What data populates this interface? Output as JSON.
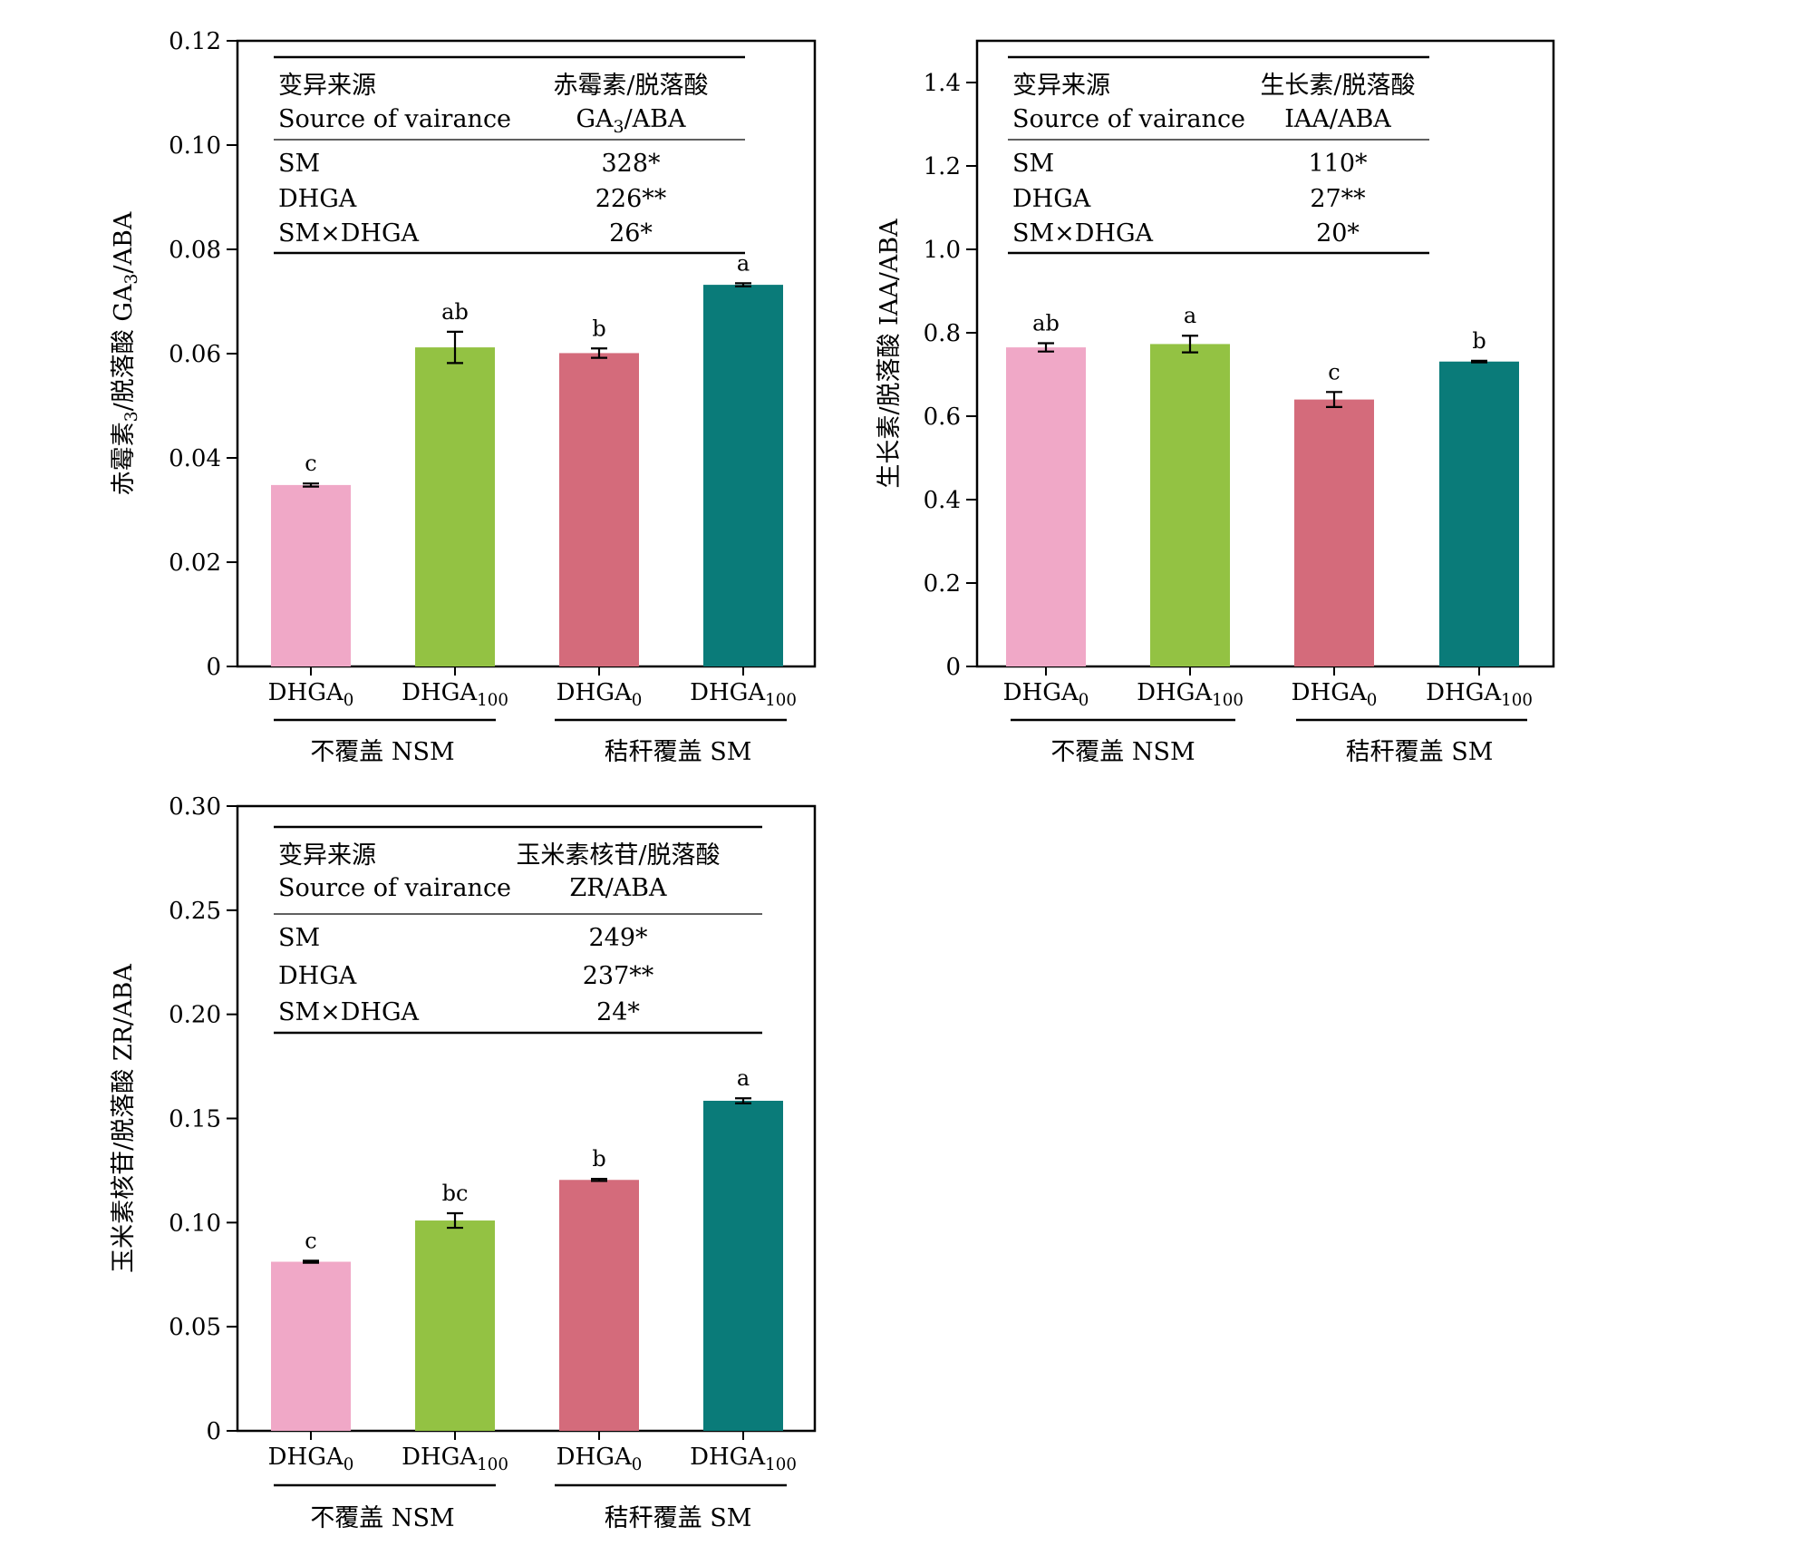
{
  "colors": {
    "DHGA0_NSM": "#f0a8c7",
    "DHGA100_NSM": "#93c243",
    "DHGA0_SM": "#d46b7b",
    "DHGA100_SM": "#0a7b79"
  },
  "chart_data": [
    {
      "type": "bar",
      "ylabel_main": "赤霉素",
      "ylabel_sub": "3",
      "ylabel_rest": "/脱落酸 GA",
      "ylabel_sub2": "3",
      "ylabel_end": "/ABA",
      "ylim": [
        0,
        0.12
      ],
      "yticks": [
        "0",
        "0.02",
        "0.04",
        "0.06",
        "0.08",
        "0.10",
        "0.12"
      ],
      "categories": [
        {
          "base": "DHGA",
          "sub": "0"
        },
        {
          "base": "DHGA",
          "sub": "100"
        },
        {
          "base": "DHGA",
          "sub": "0"
        },
        {
          "base": "DHGA",
          "sub": "100"
        }
      ],
      "groups": [
        "不覆盖 NSM",
        "秸秆覆盖 SM"
      ],
      "values": [
        0.0348,
        0.0612,
        0.0601,
        0.0732
      ],
      "errors": [
        0.0003,
        0.003,
        0.0009,
        0.0003
      ],
      "letters": [
        "c",
        "ab",
        "b",
        "a"
      ],
      "table": {
        "header_cn": "变异来源",
        "header_en": "Source of vairance",
        "col_cn": "赤霉素/脱落酸",
        "col_en_main": "GA",
        "col_en_sub": "3",
        "col_en_end": "/ABA",
        "rows": [
          {
            "label": "SM",
            "value": "328*"
          },
          {
            "label": "DHGA",
            "value": "226**"
          },
          {
            "label": "SM×DHGA",
            "value": "26*"
          }
        ]
      }
    },
    {
      "type": "bar",
      "ylabel_main": "生长素/脱落酸 IAA/ABA",
      "ylim": [
        0,
        1.5
      ],
      "yticks": [
        "0",
        "0.2",
        "0.4",
        "0.6",
        "0.8",
        "1.0",
        "1.2",
        "1.4"
      ],
      "categories": [
        {
          "base": "DHGA",
          "sub": "0"
        },
        {
          "base": "DHGA",
          "sub": "100"
        },
        {
          "base": "DHGA",
          "sub": "0"
        },
        {
          "base": "DHGA",
          "sub": "100"
        }
      ],
      "groups": [
        "不覆盖 NSM",
        "秸秆覆盖 SM"
      ],
      "values": [
        0.765,
        0.773,
        0.64,
        0.731
      ],
      "errors": [
        0.01,
        0.02,
        0.018,
        0.002
      ],
      "letters": [
        "ab",
        "a",
        "c",
        "b"
      ],
      "table": {
        "header_cn": "变异来源",
        "header_en": "Source of vairance",
        "col_cn": "生长素/脱落酸",
        "col_en_main": "IAA/ABA",
        "col_en_sub": "",
        "col_en_end": "",
        "rows": [
          {
            "label": "SM",
            "value": "110*"
          },
          {
            "label": "DHGA",
            "value": "27**"
          },
          {
            "label": "SM×DHGA",
            "value": "20*"
          }
        ]
      }
    },
    {
      "type": "bar",
      "ylabel_main": "玉米素核苷/脱落酸 ZR/ABA",
      "ylim": [
        0,
        0.3
      ],
      "yticks": [
        "0",
        "0.05",
        "0.10",
        "0.15",
        "0.20",
        "0.25",
        "0.30"
      ],
      "categories": [
        {
          "base": "DHGA",
          "sub": "0"
        },
        {
          "base": "DHGA",
          "sub": "100"
        },
        {
          "base": "DHGA",
          "sub": "0"
        },
        {
          "base": "DHGA",
          "sub": "100"
        }
      ],
      "groups": [
        "不覆盖 NSM",
        "秸秆覆盖 SM"
      ],
      "values": [
        0.0812,
        0.101,
        0.1205,
        0.1585
      ],
      "errors": [
        0.0005,
        0.0035,
        0.0005,
        0.0012
      ],
      "letters": [
        "c",
        "bc",
        "b",
        "a"
      ],
      "table": {
        "header_cn": "变异来源",
        "header_en": "Source of vairance",
        "col_cn": "玉米素核苷/脱落酸",
        "col_en_main": "ZR/ABA",
        "col_en_sub": "",
        "col_en_end": "",
        "rows": [
          {
            "label": "SM",
            "value": "249*"
          },
          {
            "label": "DHGA",
            "value": "237**"
          },
          {
            "label": "SM×DHGA",
            "value": "24*"
          }
        ]
      }
    }
  ]
}
